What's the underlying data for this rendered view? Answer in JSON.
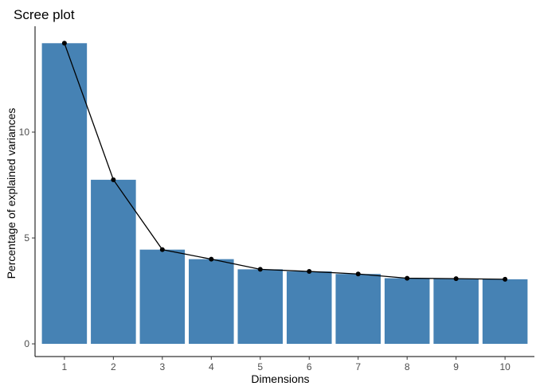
{
  "chart_data": {
    "type": "bar",
    "title": "Scree plot",
    "xlabel": "Dimensions",
    "ylabel": "Percentage of explained variances",
    "categories": [
      "1",
      "2",
      "3",
      "4",
      "5",
      "6",
      "7",
      "8",
      "9",
      "10"
    ],
    "values": [
      14.2,
      7.75,
      4.45,
      4.0,
      3.52,
      3.42,
      3.3,
      3.1,
      3.08,
      3.05
    ],
    "line_overlay": true,
    "ylim": [
      -0.6,
      15
    ],
    "yticks": [
      0,
      5,
      10
    ],
    "grid": false,
    "bar_color": "#4682b4",
    "line_color": "#000000"
  }
}
